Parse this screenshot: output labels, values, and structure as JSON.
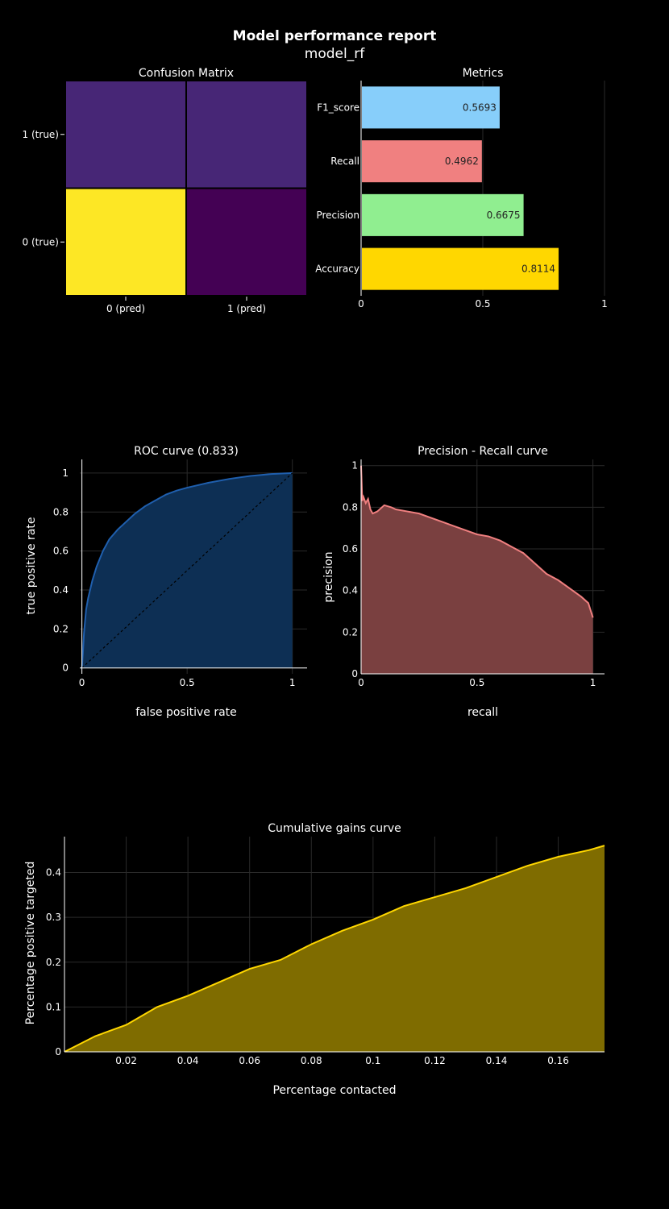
{
  "report": {
    "title": "Model performance report",
    "subtitle": "model_rf"
  },
  "colors": {
    "background": "#000000",
    "grid": "#2a2a2a",
    "cm_high": "#fde725",
    "cm_mid": "#472676",
    "cm_low": "#440154",
    "roc_line": "#1f5fae",
    "roc_fill": "#0d2f54",
    "pr_line": "#f08080",
    "pr_fill": "#7a4040",
    "gains_line": "#ffd700",
    "gains_fill": "#7f6c00"
  },
  "chart_data": [
    {
      "type": "heatmap",
      "title": "Confusion Matrix",
      "x_categories": [
        "0 (pred)",
        "1 (pred)"
      ],
      "y_categories": [
        "0 (true)",
        "1 (true)"
      ],
      "cell_colors": [
        [
          "#fde725",
          "#440154"
        ],
        [
          "#472676",
          "#472676"
        ]
      ]
    },
    {
      "type": "bar",
      "orientation": "horizontal",
      "title": "Metrics",
      "categories": [
        "Accuracy",
        "Precision",
        "Recall",
        "F1_score"
      ],
      "values": [
        0.8114,
        0.6675,
        0.4962,
        0.5693
      ],
      "value_labels": [
        "0.8114",
        "0.6675",
        "0.4962",
        "0.5693"
      ],
      "colors": [
        "#ffd700",
        "#90ee90",
        "#f08080",
        "#87cefa"
      ],
      "xlim": [
        0,
        1
      ],
      "xticks": [
        "0",
        "0.5",
        "1"
      ]
    },
    {
      "type": "area",
      "title": "ROC curve (0.833)",
      "xlabel": "false positive rate",
      "ylabel": "true positive rate",
      "xlim": [
        -0.01,
        1.07
      ],
      "ylim": [
        -0.03,
        1.07
      ],
      "xticks": [
        "0",
        "0.5",
        "1"
      ],
      "yticks": [
        "0",
        "0.2",
        "0.4",
        "0.6",
        "0.8",
        "1"
      ],
      "x": [
        0,
        0.005,
        0.01,
        0.02,
        0.03,
        0.05,
        0.07,
        0.1,
        0.13,
        0.17,
        0.2,
        0.25,
        0.3,
        0.35,
        0.4,
        0.45,
        0.5,
        0.6,
        0.7,
        0.8,
        0.9,
        1
      ],
      "y": [
        0,
        0.08,
        0.18,
        0.3,
        0.36,
        0.45,
        0.52,
        0.6,
        0.66,
        0.71,
        0.74,
        0.79,
        0.83,
        0.86,
        0.89,
        0.91,
        0.925,
        0.95,
        0.97,
        0.985,
        0.995,
        1
      ],
      "baseline": {
        "x": [
          0,
          1
        ],
        "y": [
          0,
          1
        ]
      }
    },
    {
      "type": "area",
      "title": "Precision - Recall curve",
      "xlabel": "recall",
      "ylabel": "precision",
      "xlim": [
        0,
        1.05
      ],
      "ylim": [
        0,
        1.03
      ],
      "xticks": [
        "0",
        "0.5",
        "1"
      ],
      "yticks": [
        "0",
        "0.2",
        "0.4",
        "0.6",
        "0.8",
        "1"
      ],
      "x": [
        0,
        0.005,
        0.01,
        0.02,
        0.03,
        0.04,
        0.05,
        0.07,
        0.1,
        0.13,
        0.15,
        0.2,
        0.25,
        0.3,
        0.35,
        0.4,
        0.45,
        0.5,
        0.55,
        0.6,
        0.65,
        0.7,
        0.75,
        0.8,
        0.85,
        0.9,
        0.95,
        0.98,
        1
      ],
      "y": [
        1.0,
        0.83,
        0.85,
        0.82,
        0.84,
        0.79,
        0.77,
        0.78,
        0.81,
        0.8,
        0.79,
        0.78,
        0.77,
        0.75,
        0.73,
        0.71,
        0.69,
        0.67,
        0.66,
        0.64,
        0.61,
        0.58,
        0.53,
        0.48,
        0.45,
        0.41,
        0.37,
        0.34,
        0.27
      ]
    },
    {
      "type": "area",
      "title": "Cumulative gains curve",
      "xlabel": "Percentage contacted",
      "ylabel": "Percentage positive targeted",
      "xlim": [
        0,
        0.175
      ],
      "ylim": [
        0,
        0.48
      ],
      "xticks": [
        "0.02",
        "0.04",
        "0.06",
        "0.08",
        "0.1",
        "0.12",
        "0.14",
        "0.16"
      ],
      "yticks": [
        "0",
        "0.1",
        "0.2",
        "0.3",
        "0.4"
      ],
      "x": [
        0,
        0.01,
        0.02,
        0.03,
        0.04,
        0.05,
        0.06,
        0.07,
        0.08,
        0.09,
        0.1,
        0.11,
        0.12,
        0.13,
        0.14,
        0.15,
        0.16,
        0.17,
        0.175
      ],
      "y": [
        0,
        0.035,
        0.06,
        0.1,
        0.125,
        0.155,
        0.185,
        0.205,
        0.24,
        0.27,
        0.295,
        0.325,
        0.345,
        0.365,
        0.39,
        0.415,
        0.435,
        0.45,
        0.46
      ]
    }
  ]
}
